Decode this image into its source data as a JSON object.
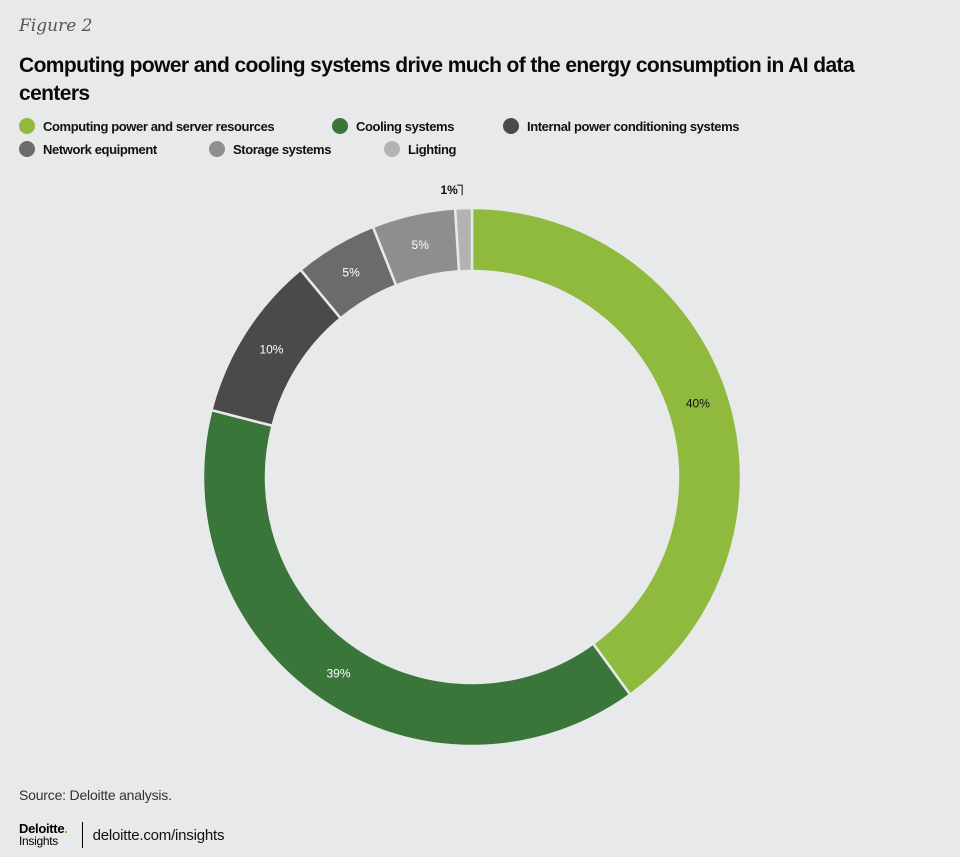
{
  "figure_label": "Figure 2",
  "title": "Computing power and cooling systems drive much of the energy consumption in AI data centers",
  "legend": [
    {
      "label": "Computing power and server resources",
      "color": "#8fba3e"
    },
    {
      "label": "Cooling systems",
      "color": "#3a7539"
    },
    {
      "label": "Internal power conditioning systems",
      "color": "#4a4a4a"
    },
    {
      "label": "Network equipment",
      "color": "#6b6b6b"
    },
    {
      "label": "Storage systems",
      "color": "#8e8e8e"
    },
    {
      "label": "Lighting",
      "color": "#b3b3b3"
    }
  ],
  "chart_data": {
    "type": "pie",
    "subtype": "donut",
    "title": "Computing power and cooling systems drive much of the energy consumption in AI data centers",
    "categories": [
      "Computing power and server resources",
      "Cooling systems",
      "Internal power conditioning systems",
      "Network equipment",
      "Storage systems",
      "Lighting"
    ],
    "values": [
      40,
      39,
      10,
      5,
      5,
      1
    ],
    "labels": [
      "40%",
      "39%",
      "10%",
      "5%",
      "5%",
      "1%"
    ],
    "colors": [
      "#8fba3e",
      "#3a7539",
      "#4a4a4a",
      "#6b6b6b",
      "#8e8e8e",
      "#b3b3b3"
    ],
    "legend_position": "top",
    "start_angle": "12 o'clock, clockwise"
  },
  "source": "Source: Deloitte analysis.",
  "footer": {
    "logo_top": "Deloitte",
    "logo_dot": ".",
    "logo_bottom": "Insights",
    "url": "deloitte.com/insights"
  }
}
